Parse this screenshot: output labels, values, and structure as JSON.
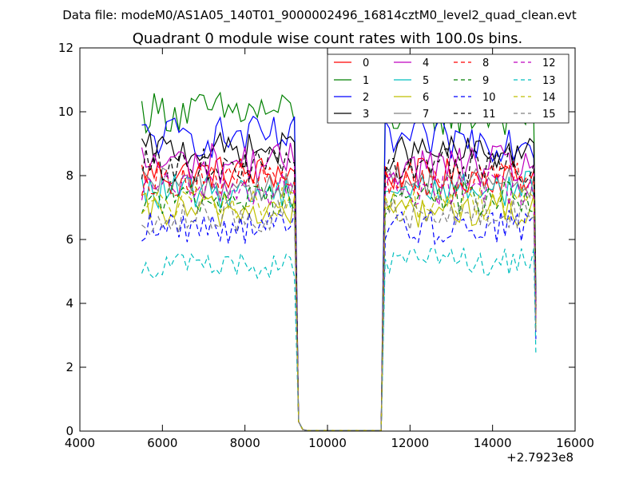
{
  "figure": {
    "suptitle": "Data file: modeM0/AS1A05_140T01_9000002496_16814cztM0_level2_quad_clean.evt",
    "title": "Quadrant 0 module wise count rates with 100.0s bins.",
    "x_offset_label": "+2.7923e8"
  },
  "chart_data": {
    "type": "line",
    "title": "Quadrant 0 module wise count rates with 100.0s bins.",
    "xlabel": "",
    "ylabel": "",
    "xlim": [
      4000,
      16000
    ],
    "ylim": [
      0,
      12
    ],
    "x_offset": 279230000,
    "x_ticks": [
      4000,
      6000,
      8000,
      10000,
      12000,
      14000,
      16000
    ],
    "y_ticks": [
      0,
      2,
      4,
      6,
      8,
      10,
      12
    ],
    "grid": false,
    "legend": "top-right, 4 columns",
    "segment_a": [
      5500,
      9200
    ],
    "segment_b": [
      11400,
      15000
    ],
    "gap": [
      9300,
      11300
    ],
    "series": [
      {
        "name": "0",
        "color": "#ff0000",
        "dash": "solid",
        "mean_a": 8.1,
        "mean_b": 8.0,
        "amp": 0.25
      },
      {
        "name": "1",
        "color": "#008000",
        "dash": "solid",
        "mean_a": 10.0,
        "mean_b": 9.9,
        "amp": 0.3
      },
      {
        "name": "2",
        "color": "#0000ff",
        "dash": "solid",
        "mean_a": 9.2,
        "mean_b": 9.1,
        "amp": 0.3
      },
      {
        "name": "3",
        "color": "#000000",
        "dash": "solid",
        "mean_a": 8.8,
        "mean_b": 8.7,
        "amp": 0.25
      },
      {
        "name": "4",
        "color": "#bf00bf",
        "dash": "solid",
        "mean_a": 8.4,
        "mean_b": 8.3,
        "amp": 0.3
      },
      {
        "name": "5",
        "color": "#00bfbf",
        "dash": "solid",
        "mean_a": 7.5,
        "mean_b": 7.6,
        "amp": 0.25
      },
      {
        "name": "6",
        "color": "#bfbf00",
        "dash": "solid",
        "mean_a": 6.9,
        "mean_b": 6.9,
        "amp": 0.25
      },
      {
        "name": "7",
        "color": "#808080",
        "dash": "solid",
        "mean_a": 7.7,
        "mean_b": 7.8,
        "amp": 0.25
      },
      {
        "name": "8",
        "color": "#ff0000",
        "dash": "dashed",
        "mean_a": 7.9,
        "mean_b": 7.9,
        "amp": 0.25
      },
      {
        "name": "9",
        "color": "#008000",
        "dash": "dashed",
        "mean_a": 7.3,
        "mean_b": 7.3,
        "amp": 0.25
      },
      {
        "name": "10",
        "color": "#0000ff",
        "dash": "dashed",
        "mean_a": 6.4,
        "mean_b": 6.4,
        "amp": 0.25
      },
      {
        "name": "11",
        "color": "#000000",
        "dash": "dashed",
        "mean_a": 8.3,
        "mean_b": 8.3,
        "amp": 0.25
      },
      {
        "name": "12",
        "color": "#bf00bf",
        "dash": "dashed",
        "mean_a": 7.6,
        "mean_b": 7.6,
        "amp": 0.25
      },
      {
        "name": "13",
        "color": "#00bfbf",
        "dash": "dashed",
        "mean_a": 5.2,
        "mean_b": 5.3,
        "amp": 0.2
      },
      {
        "name": "14",
        "color": "#bfbf00",
        "dash": "dashed",
        "mean_a": 7.1,
        "mean_b": 7.1,
        "amp": 0.25
      },
      {
        "name": "15",
        "color": "#808080",
        "dash": "dashed",
        "mean_a": 6.7,
        "mean_b": 6.8,
        "amp": 0.25
      }
    ]
  }
}
